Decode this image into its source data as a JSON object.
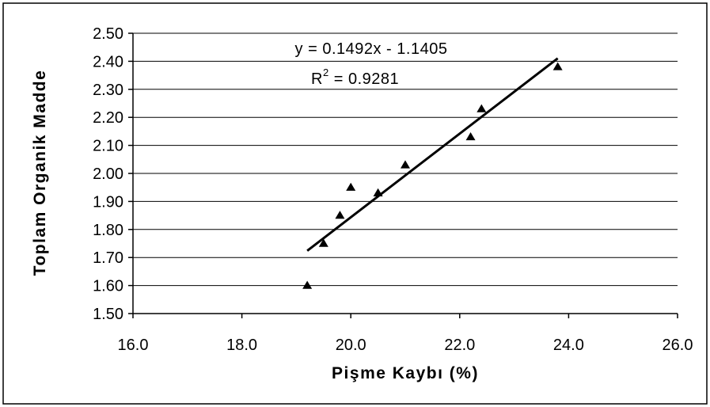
{
  "chart_data": {
    "type": "scatter",
    "xlabel": "Pişme Kaybı (%)",
    "ylabel": "Toplam Organik Madde",
    "xlim": [
      16.0,
      26.0
    ],
    "ylim": [
      1.5,
      2.5
    ],
    "xticks": [
      "16.0",
      "18.0",
      "20.0",
      "22.0",
      "24.0",
      "26.0"
    ],
    "yticks": [
      "1.50",
      "1.60",
      "1.70",
      "1.80",
      "1.90",
      "2.00",
      "2.10",
      "2.20",
      "2.30",
      "2.40",
      "2.50"
    ],
    "grid": "horizontal",
    "marker": "triangle",
    "series": [
      {
        "points": [
          {
            "x": 19.2,
            "y": 1.6
          },
          {
            "x": 19.5,
            "y": 1.75
          },
          {
            "x": 19.8,
            "y": 1.85
          },
          {
            "x": 20.0,
            "y": 1.95
          },
          {
            "x": 20.5,
            "y": 1.93
          },
          {
            "x": 21.0,
            "y": 2.03
          },
          {
            "x": 22.2,
            "y": 2.13
          },
          {
            "x": 22.4,
            "y": 2.23
          },
          {
            "x": 23.8,
            "y": 2.38
          }
        ]
      }
    ],
    "trendline": {
      "type": "linear",
      "slope": 0.1492,
      "intercept": -1.1405,
      "x_range": [
        19.2,
        23.8
      ],
      "equation": "y = 0.1492x - 1.1405",
      "r2_prefix": "R",
      "r2_sup": "2",
      "r2_value": " = 0.9281"
    }
  }
}
